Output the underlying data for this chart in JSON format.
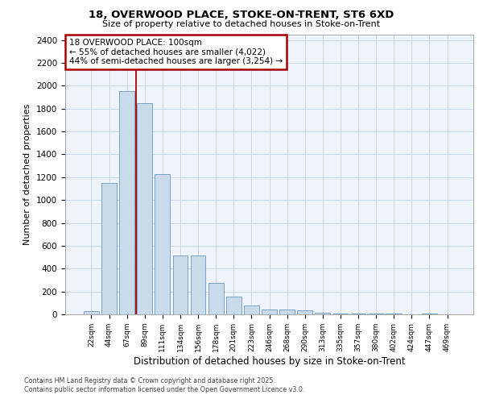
{
  "title_line1": "18, OVERWOOD PLACE, STOKE-ON-TRENT, ST6 6XD",
  "title_line2": "Size of property relative to detached houses in Stoke-on-Trent",
  "xlabel": "Distribution of detached houses by size in Stoke-on-Trent",
  "ylabel": "Number of detached properties",
  "categories": [
    "22sqm",
    "44sqm",
    "67sqm",
    "89sqm",
    "111sqm",
    "134sqm",
    "156sqm",
    "178sqm",
    "201sqm",
    "223sqm",
    "246sqm",
    "268sqm",
    "290sqm",
    "313sqm",
    "335sqm",
    "357sqm",
    "380sqm",
    "402sqm",
    "424sqm",
    "447sqm",
    "469sqm"
  ],
  "values": [
    25,
    1150,
    1950,
    1850,
    1230,
    515,
    515,
    275,
    155,
    80,
    45,
    40,
    35,
    15,
    10,
    5,
    5,
    5,
    3,
    5,
    2
  ],
  "bar_color": "#c9daea",
  "bar_edge_color": "#6699bb",
  "red_line_x": 2.5,
  "annotation_text": "18 OVERWOOD PLACE: 100sqm\n← 55% of detached houses are smaller (4,022)\n44% of semi-detached houses are larger (3,254) →",
  "annotation_box_color": "#ffffff",
  "annotation_edge_color": "#aa0000",
  "ylim": [
    0,
    2450
  ],
  "yticks": [
    0,
    200,
    400,
    600,
    800,
    1000,
    1200,
    1400,
    1600,
    1800,
    2000,
    2200,
    2400
  ],
  "grid_color": "#c8d8e8",
  "background_color": "#eef4f9",
  "footer_line1": "Contains HM Land Registry data © Crown copyright and database right 2025.",
  "footer_line2": "Contains public sector information licensed under the Open Government Licence v3.0."
}
